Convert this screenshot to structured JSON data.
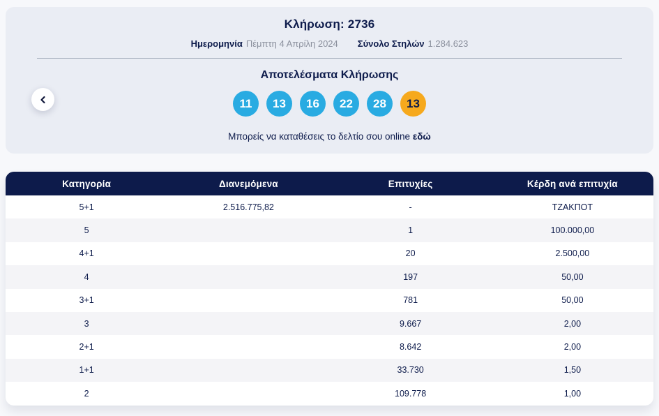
{
  "colors": {
    "navy": "#0d1b4b",
    "ball_blue": "#29abe2",
    "ball_orange": "#f6a91d",
    "card_bg": "#eaedf4",
    "page_bg": "#f7f8fb",
    "row_alt": "#f4f4f7",
    "muted": "#8a8f9c",
    "divider": "#9aa2b1"
  },
  "draw": {
    "title": "Κλήρωση: 2736",
    "date_label": "Ημερομηνία",
    "date_value": "Πέμπτη 4 Απρίλη 2024",
    "columns_label": "Σύνολο Στηλών",
    "columns_value": "1.284.623",
    "results_heading": "Αποτελέσματα Κλήρωσης",
    "numbers": [
      "11",
      "13",
      "16",
      "22",
      "28"
    ],
    "joker": "13",
    "deposit_text": "Μπορείς να καταθέσεις το δελτίο σου online",
    "deposit_link": "εδώ",
    "back_icon": "chevron-left"
  },
  "table": {
    "headers": [
      "Κατηγορία",
      "Διανεμόμενα",
      "Επιτυχίες",
      "Κέρδη ανά επιτυχία"
    ],
    "rows": [
      [
        "5+1",
        "2.516.775,82",
        "-",
        "ΤΖΑΚΠΟΤ"
      ],
      [
        "5",
        "",
        "1",
        "100.000,00"
      ],
      [
        "4+1",
        "",
        "20",
        "2.500,00"
      ],
      [
        "4",
        "",
        "197",
        "50,00"
      ],
      [
        "3+1",
        "",
        "781",
        "50,00"
      ],
      [
        "3",
        "",
        "9.667",
        "2,00"
      ],
      [
        "2+1",
        "",
        "8.642",
        "2,00"
      ],
      [
        "1+1",
        "",
        "33.730",
        "1,50"
      ],
      [
        "2",
        "",
        "109.778",
        "1,00"
      ]
    ]
  }
}
